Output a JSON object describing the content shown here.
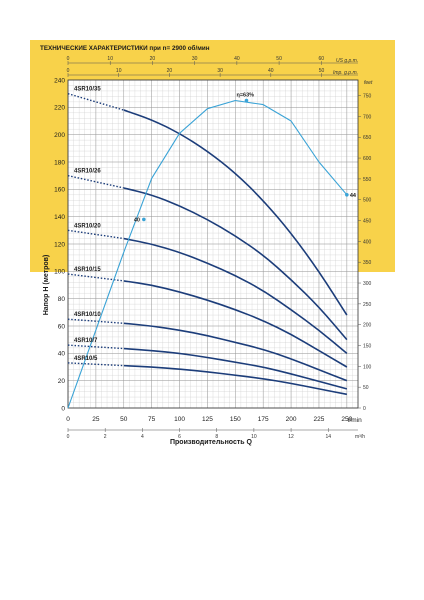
{
  "chart_data": {
    "type": "line",
    "title": "ТЕХНИЧЕСКИЕ ХАРАКТЕРИСТИКИ при n= 2900 об/мин",
    "xlabel": "Производительность Q",
    "ylabel": "Напор H (метров)",
    "x_unit": "l/min",
    "x_alt_unit": "m³/h",
    "top_unit_us": "US g.p.m.",
    "top_unit_imp": "Imp. g.p.m.",
    "right_unit": "feet",
    "xlim": [
      0,
      260
    ],
    "ylim": [
      0,
      240
    ],
    "x_ticks": [
      0,
      25,
      50,
      75,
      100,
      125,
      150,
      175,
      200,
      225,
      250
    ],
    "y_ticks": [
      0,
      20,
      40,
      60,
      80,
      100,
      120,
      140,
      160,
      180,
      200,
      220,
      240
    ],
    "m3h_ticks": [
      0,
      2,
      4,
      6,
      8,
      10,
      12,
      14
    ],
    "us_gpm_ticks": [
      0,
      10,
      20,
      30,
      40,
      50,
      60
    ],
    "imp_gpm_ticks": [
      0,
      10,
      20,
      30,
      40,
      50
    ],
    "feet_ticks": [
      0,
      50,
      100,
      150,
      200,
      250,
      300,
      350,
      400,
      450,
      500,
      550,
      600,
      650,
      700,
      750
    ],
    "grid": true,
    "series": [
      {
        "name": "4SR10/35",
        "dashed": {
          "x": [
            0,
            50
          ],
          "y": [
            230,
            218
          ]
        },
        "solid": {
          "x": [
            50,
            75,
            100,
            125,
            150,
            175,
            200,
            225,
            250
          ],
          "y": [
            218,
            211,
            201,
            188,
            172,
            152,
            128,
            100,
            68
          ]
        }
      },
      {
        "name": "4SR10/26",
        "dashed": {
          "x": [
            0,
            50
          ],
          "y": [
            170,
            161
          ]
        },
        "solid": {
          "x": [
            50,
            75,
            100,
            125,
            150,
            175,
            200,
            225,
            250
          ],
          "y": [
            161,
            156,
            148,
            138,
            126,
            112,
            94,
            74,
            50
          ]
        }
      },
      {
        "name": "4SR10/20",
        "dashed": {
          "x": [
            0,
            50
          ],
          "y": [
            130,
            124
          ]
        },
        "solid": {
          "x": [
            50,
            75,
            100,
            125,
            150,
            175,
            200,
            225,
            250
          ],
          "y": [
            124,
            120,
            114,
            106,
            97,
            86,
            72,
            57,
            40
          ]
        }
      },
      {
        "name": "4SR10/15",
        "dashed": {
          "x": [
            0,
            50
          ],
          "y": [
            98,
            93
          ]
        },
        "solid": {
          "x": [
            50,
            75,
            100,
            125,
            150,
            175,
            200,
            225,
            250
          ],
          "y": [
            93,
            90,
            85,
            79,
            72,
            64,
            54,
            42,
            30
          ]
        }
      },
      {
        "name": "4SR10/10",
        "dashed": {
          "x": [
            0,
            50
          ],
          "y": [
            65,
            62
          ]
        },
        "solid": {
          "x": [
            50,
            75,
            100,
            125,
            150,
            175,
            200,
            225,
            250
          ],
          "y": [
            62,
            60,
            57,
            53,
            48,
            43,
            36,
            28,
            20
          ]
        }
      },
      {
        "name": "4SR10/7",
        "dashed": {
          "x": [
            0,
            50
          ],
          "y": [
            46,
            43.5
          ]
        },
        "solid": {
          "x": [
            50,
            75,
            100,
            125,
            150,
            175,
            200,
            225,
            250
          ],
          "y": [
            43.5,
            42,
            40,
            37,
            33.5,
            30,
            25,
            19.5,
            14
          ]
        }
      },
      {
        "name": "4SR10/5",
        "dashed": {
          "x": [
            0,
            50
          ],
          "y": [
            33,
            31
          ]
        },
        "solid": {
          "x": [
            50,
            75,
            100,
            125,
            150,
            175,
            200,
            225,
            250
          ],
          "y": [
            31,
            30,
            28.5,
            26.5,
            24,
            21.5,
            18,
            14,
            10
          ]
        }
      }
    ],
    "efficiency_curve": {
      "x": [
        0,
        25,
        50,
        75,
        100,
        125,
        150,
        175,
        200,
        225,
        250
      ],
      "y": [
        0,
        19,
        38,
        56,
        67,
        73,
        75,
        74,
        70,
        60,
        52
      ],
      "eta_scale_note": "secondary efficiency scale",
      "peak": {
        "x": 160,
        "y": 75,
        "label": "η=63%"
      },
      "left_marker": {
        "x": 68,
        "y": 46,
        "label": "40"
      },
      "right_marker": {
        "x": 250,
        "y": 52,
        "label": "44"
      }
    }
  }
}
